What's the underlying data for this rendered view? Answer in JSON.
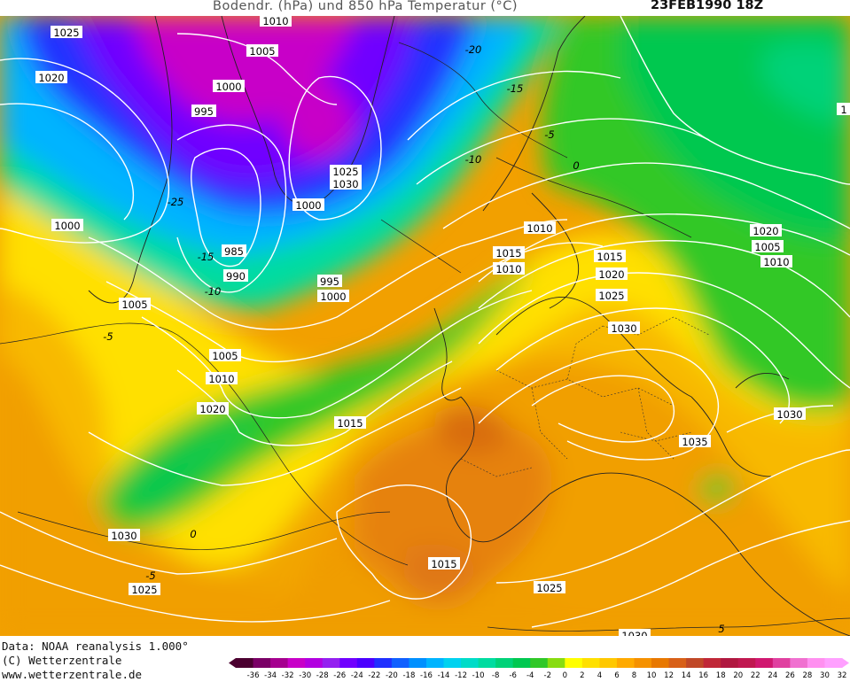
{
  "title": {
    "left": "Bodendr. (hPa) und 850 hPa Temperatur (°C)",
    "right": "23FEB1990 18Z"
  },
  "footer": {
    "line1": "Data: NOAA reanalysis 1.000°",
    "line2": "(C) Wetterzentrale",
    "line3": "www.wetterzentrale.de"
  },
  "colorbar": {
    "ticks": [
      "-36",
      "-34",
      "-32",
      "-30",
      "-28",
      "-26",
      "-24",
      "-22",
      "-20",
      "-18",
      "-16",
      "-14",
      "-12",
      "-10",
      "-8",
      "-6",
      "-4",
      "-2",
      "0",
      "2",
      "4",
      "6",
      "8",
      "10",
      "12",
      "14",
      "16",
      "18",
      "20",
      "22",
      "24",
      "26",
      "28",
      "30",
      "32"
    ],
    "colors": [
      "#4b0030",
      "#7a0066",
      "#a5008f",
      "#c800c8",
      "#b200e0",
      "#9420f0",
      "#7000ff",
      "#4b00ff",
      "#2030ff",
      "#1060ff",
      "#0090ff",
      "#00b4ff",
      "#00d2f0",
      "#00dcc8",
      "#00dca0",
      "#00d278",
      "#00c850",
      "#30c828",
      "#88dc10",
      "#ffff00",
      "#ffe000",
      "#ffc800",
      "#ffaa00",
      "#f59100",
      "#e87800",
      "#d86018",
      "#c04828",
      "#c02838",
      "#b01840",
      "#c01850",
      "#d01870",
      "#e040a0",
      "#f070d0",
      "#ff90f0",
      "#ffa0ff"
    ]
  },
  "pressure_labels": [
    "1025",
    "1020",
    "1010",
    "1005",
    "1000",
    "995",
    "985",
    "990",
    "1000",
    "995",
    "1000",
    "1005",
    "1010",
    "1020",
    "1015",
    "1030",
    "1025",
    "1000",
    "1005",
    "1010",
    "1015",
    "1010",
    "1015",
    "1020",
    "1025",
    "1030",
    "1035",
    "1030",
    "1020",
    "1005",
    "1010",
    "1015",
    "1025",
    "1030",
    "1025",
    "1030",
    "1"
  ],
  "temp_labels": [
    "-20",
    "-15",
    "-10",
    "-5",
    "0",
    "-25",
    "-15",
    "-10",
    "-5",
    "0",
    "-5",
    "5"
  ]
}
